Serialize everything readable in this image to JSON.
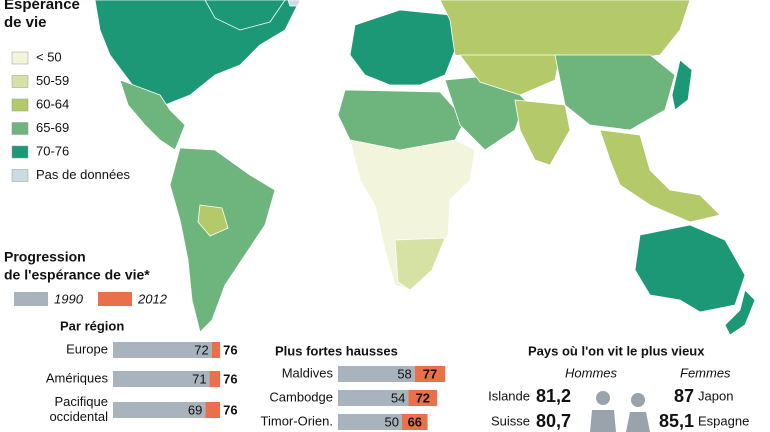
{
  "map": {
    "legend": {
      "title": [
        "Espérance",
        "de vie"
      ],
      "items": [
        {
          "label": "< 50",
          "color": "#f3f4dc"
        },
        {
          "label": "50-59",
          "color": "#d6e2a4"
        },
        {
          "label": "60-64",
          "color": "#b3c96a"
        },
        {
          "label": "65-69",
          "color": "#6db57c"
        },
        {
          "label": "70-76",
          "color": "#1c9877"
        },
        {
          "label": "Pas de données",
          "color": "#c9dbe3"
        }
      ]
    }
  },
  "progression": {
    "title": [
      "Progression",
      "de l'espérance de vie*"
    ],
    "series": [
      {
        "name": "1990",
        "color": "#a8b3be"
      },
      {
        "name": "2012",
        "color": "#e8704a"
      }
    ],
    "par_region": {
      "title": "Par région",
      "rows": [
        {
          "label": [
            "Europe"
          ],
          "values": [
            72,
            76
          ]
        },
        {
          "label": [
            "Amériques"
          ],
          "values": [
            71,
            76
          ]
        },
        {
          "label": [
            "Pacifique",
            "occidental"
          ],
          "values": [
            69,
            76
          ]
        }
      ]
    },
    "hausses": {
      "title": "Plus fortes hausses",
      "rows": [
        {
          "label": [
            "Maldives"
          ],
          "values": [
            58,
            77
          ]
        },
        {
          "label": [
            "Cambodge"
          ],
          "values": [
            54,
            72
          ]
        },
        {
          "label": [
            "Timor-Orien."
          ],
          "values": [
            50,
            66
          ]
        }
      ]
    }
  },
  "vieux": {
    "title": "Pays où l'on vit le plus vieux",
    "hommes": {
      "label": "Hommes",
      "rows": [
        {
          "country": "Islande",
          "value": {
            "value": 81.2,
            "label": "81,2"
          }
        },
        {
          "country": "Suisse",
          "value": {
            "value": 80.7,
            "label": "80,7"
          }
        }
      ]
    },
    "femmes": {
      "label": "Femmes",
      "rows": [
        {
          "country": "Japon",
          "value": 87
        },
        {
          "country": "Espagne",
          "value": {
            "value": 85.1,
            "label": "85,1"
          }
        }
      ]
    }
  }
}
